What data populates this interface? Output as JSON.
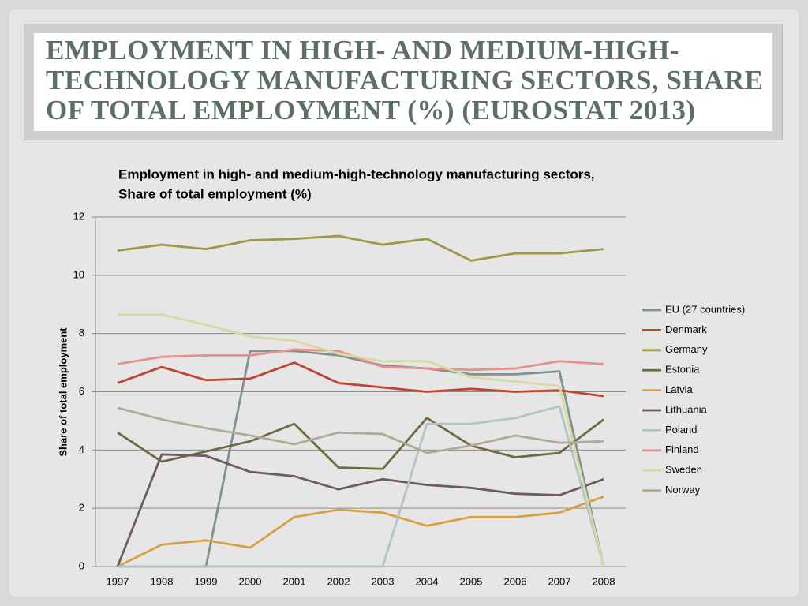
{
  "slide": {
    "title": "EMPLOYMENT IN HIGH- AND MEDIUM-HIGH-TECHNOLOGY MANUFACTURING SECTORS, SHARE OF TOTAL EMPLOYMENT (%) (EUROSTAT 2013)"
  },
  "chart_data": {
    "type": "line",
    "title": "Employment in high- and medium-high-technology manufacturing sectors,",
    "subtitle": "Share of total employment (%)",
    "y_label": "Share of total employment",
    "categories": [
      "1997",
      "1998",
      "1999",
      "2000",
      "2001",
      "2002",
      "2003",
      "2004",
      "2005",
      "2006",
      "2007",
      "2008"
    ],
    "ylim": [
      0,
      12
    ],
    "yticks": [
      0,
      2,
      4,
      6,
      8,
      10,
      12
    ],
    "grid": true,
    "series": [
      {
        "name": "EU (27 countries)",
        "color": "#7f9191",
        "values": [
          0,
          0,
          0,
          7.4,
          7.4,
          7.25,
          6.9,
          6.8,
          6.6,
          6.6,
          6.7,
          0
        ]
      },
      {
        "name": "Denmark",
        "color": "#c0452f",
        "values": [
          6.3,
          6.85,
          6.4,
          6.45,
          7.0,
          6.3,
          6.15,
          6.0,
          6.1,
          6.0,
          6.05,
          5.85
        ]
      },
      {
        "name": "Germany",
        "color": "#9c9a44",
        "values": [
          10.85,
          11.05,
          10.9,
          11.2,
          11.25,
          11.35,
          11.05,
          11.25,
          10.5,
          10.75,
          10.75,
          10.9
        ]
      },
      {
        "name": "Estonia",
        "color": "#6c6c42",
        "values": [
          4.6,
          3.6,
          3.95,
          4.3,
          4.9,
          3.4,
          3.35,
          5.1,
          4.15,
          3.75,
          3.9,
          5.05
        ]
      },
      {
        "name": "Latvia",
        "color": "#d9a040",
        "values": [
          0,
          0.75,
          0.9,
          0.65,
          1.7,
          1.95,
          1.85,
          1.4,
          1.7,
          1.7,
          1.85,
          2.4
        ]
      },
      {
        "name": "Lithuania",
        "color": "#6b5b64",
        "values": [
          0,
          3.85,
          3.8,
          3.25,
          3.1,
          2.65,
          3.0,
          2.8,
          2.7,
          2.5,
          2.45,
          3.0
        ]
      },
      {
        "name": "Poland",
        "color": "#b3c4c4",
        "values": [
          0,
          0,
          0,
          0,
          0,
          0,
          0,
          4.9,
          4.9,
          5.1,
          5.5,
          0
        ]
      },
      {
        "name": "Finland",
        "color": "#e8908a",
        "values": [
          6.95,
          7.2,
          7.25,
          7.25,
          7.45,
          7.4,
          6.85,
          6.8,
          6.75,
          6.8,
          7.05,
          6.95
        ]
      },
      {
        "name": "Sweden",
        "color": "#d9d9a2",
        "values": [
          8.65,
          8.65,
          8.3,
          7.9,
          7.75,
          7.3,
          7.05,
          7.05,
          6.5,
          6.35,
          6.2,
          0
        ]
      },
      {
        "name": "Norway",
        "color": "#b1a99a",
        "values": [
          5.45,
          5.05,
          4.75,
          4.5,
          4.2,
          4.6,
          4.55,
          3.9,
          4.15,
          4.5,
          4.25,
          4.3
        ]
      }
    ]
  }
}
